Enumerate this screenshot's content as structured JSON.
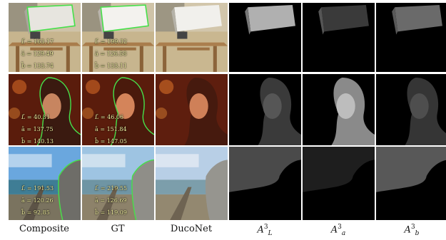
{
  "columns": [
    {
      "label": "Composite"
    },
    {
      "label": "GT"
    },
    {
      "label": "DucoNet"
    },
    {
      "label_base": "A",
      "label_sup": "3",
      "label_sub": "L"
    },
    {
      "label_base": "A",
      "label_sup": "3",
      "label_sub": "a"
    },
    {
      "label_base": "A",
      "label_sup": "3",
      "label_sub": "b"
    }
  ],
  "rows": [
    {
      "composite": {
        "L": "163.17",
        "a": "129.49",
        "b": "133.74"
      },
      "gt": {
        "L": "199.32",
        "a": "126.58",
        "b": "133.11"
      }
    },
    {
      "composite": {
        "L": "40.31",
        "a": "137.75",
        "b": "140.13"
      },
      "gt": {
        "L": "46.06",
        "a": "151.84",
        "b": "147.05"
      }
    },
    {
      "composite": {
        "L": "191.53",
        "a": "120.26",
        "b": "92.85"
      },
      "gt": {
        "L": "219.55",
        "a": "126.69",
        "b": "119.09"
      }
    }
  ],
  "symbols": {
    "L": "L",
    "a": "a",
    "b": "b",
    "eq": "="
  },
  "mask_color": "#46e04a"
}
